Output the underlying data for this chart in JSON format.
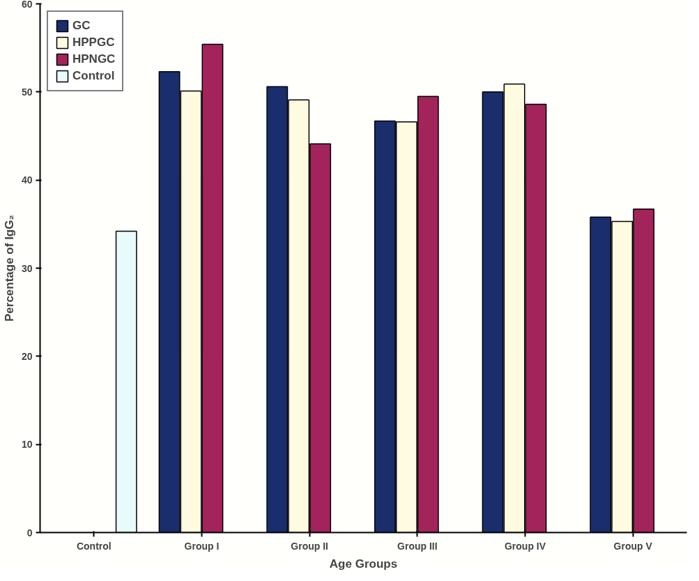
{
  "chart_data": {
    "type": "bar",
    "xlabel": "Age Groups",
    "ylabel": "Percentage of IgG₂",
    "categories": [
      "Control",
      "Group I",
      "Group II",
      "Group III",
      "Group IV",
      "Group V"
    ],
    "series": [
      {
        "name": "GC",
        "color": "#1a2e6e",
        "values": [
          null,
          52.3,
          50.6,
          46.7,
          50.0,
          35.8
        ]
      },
      {
        "name": "HPPGC",
        "color": "#fffbe0",
        "values": [
          null,
          50.1,
          49.1,
          46.6,
          50.9,
          35.3
        ]
      },
      {
        "name": "HPNGC",
        "color": "#a3245a",
        "values": [
          null,
          55.4,
          44.1,
          49.5,
          48.6,
          36.7
        ]
      },
      {
        "name": "Control",
        "color": "#e8fbfb",
        "values": [
          34.2,
          null,
          null,
          null,
          null,
          null
        ]
      }
    ],
    "ylim": [
      0,
      60
    ],
    "yticks": [
      0,
      10,
      20,
      30,
      40,
      50,
      60
    ],
    "grid": false,
    "legend": "top left"
  }
}
